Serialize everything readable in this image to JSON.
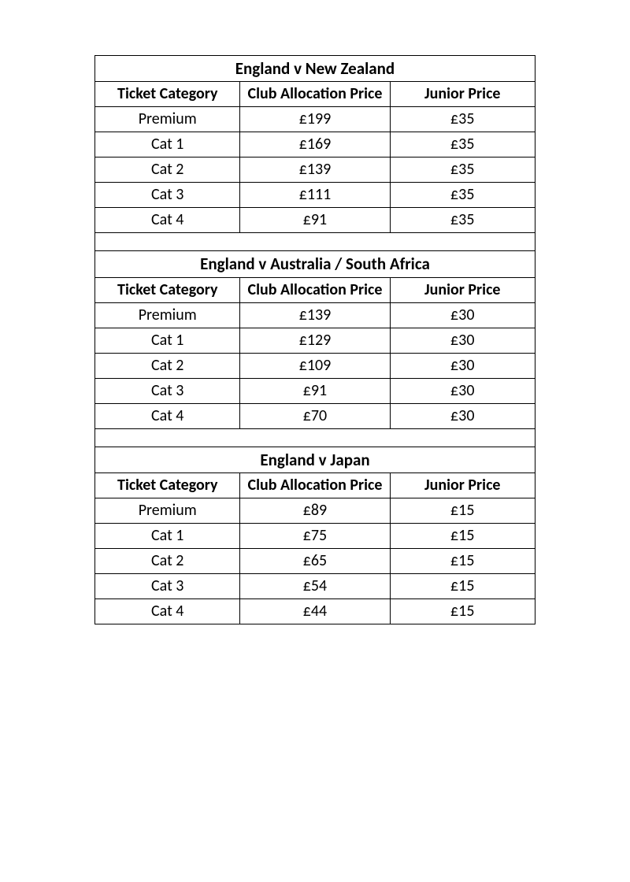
{
  "columns": {
    "category": "Ticket Category",
    "club": "Club Allocation Price",
    "junior": "Junior Price"
  },
  "sections": [
    {
      "title": "England v New Zealand",
      "rows": [
        {
          "category": "Premium",
          "club": "£199",
          "junior": "£35"
        },
        {
          "category": "Cat 1",
          "club": "£169",
          "junior": "£35"
        },
        {
          "category": "Cat 2",
          "club": "£139",
          "junior": "£35"
        },
        {
          "category": "Cat 3",
          "club": "£111",
          "junior": "£35"
        },
        {
          "category": "Cat 4",
          "club": "£91",
          "junior": "£35"
        }
      ]
    },
    {
      "title": "England v Australia / South Africa",
      "rows": [
        {
          "category": "Premium",
          "club": "£139",
          "junior": "£30"
        },
        {
          "category": "Cat 1",
          "club": "£129",
          "junior": "£30"
        },
        {
          "category": "Cat 2",
          "club": "£109",
          "junior": "£30"
        },
        {
          "category": "Cat 3",
          "club": "£91",
          "junior": "£30"
        },
        {
          "category": "Cat 4",
          "club": "£70",
          "junior": "£30"
        }
      ]
    },
    {
      "title": "England v Japan",
      "rows": [
        {
          "category": "Premium",
          "club": "£89",
          "junior": "£15"
        },
        {
          "category": "Cat 1",
          "club": "£75",
          "junior": "£15"
        },
        {
          "category": "Cat 2",
          "club": "£65",
          "junior": "£15"
        },
        {
          "category": "Cat 3",
          "club": "£54",
          "junior": "£15"
        },
        {
          "category": "Cat 4",
          "club": "£44",
          "junior": "£15"
        }
      ]
    }
  ],
  "style": {
    "border_color": "#000000",
    "background": "#ffffff",
    "font_family": "Calibri",
    "header_fontsize_pt": 15,
    "cell_fontsize_pt": 15
  }
}
